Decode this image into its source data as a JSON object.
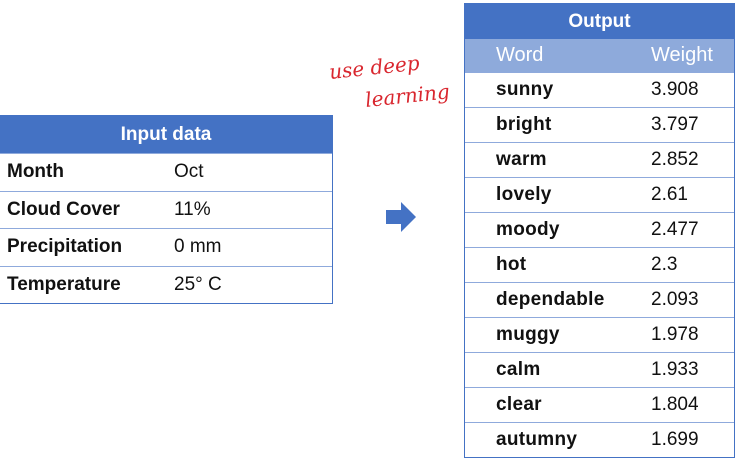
{
  "input": {
    "title": "Input data",
    "rows": [
      {
        "label": "Month",
        "value": "Oct"
      },
      {
        "label": "Cloud Cover",
        "value": "11%"
      },
      {
        "label": "Precipitation",
        "value": "0 mm"
      },
      {
        "label": "Temperature",
        "value": "25° C"
      }
    ]
  },
  "annotation": {
    "line1": "use deep",
    "line2": "learning",
    "color": "#d9262e"
  },
  "arrow": {
    "icon": "right-arrow-icon",
    "color": "#4472c4"
  },
  "output": {
    "title": "Output",
    "col_word": "Word",
    "col_weight": "Weight",
    "rows": [
      {
        "word": "sunny",
        "weight": "3.908"
      },
      {
        "word": "bright",
        "weight": "3.797"
      },
      {
        "word": "warm",
        "weight": "2.852"
      },
      {
        "word": "lovely",
        "weight": "2.61"
      },
      {
        "word": "moody",
        "weight": "2.477"
      },
      {
        "word": "hot",
        "weight": "2.3"
      },
      {
        "word": "dependable",
        "weight": "2.093"
      },
      {
        "word": "muggy",
        "weight": "1.978"
      },
      {
        "word": "calm",
        "weight": "1.933"
      },
      {
        "word": "clear",
        "weight": "1.804"
      },
      {
        "word": "autumny",
        "weight": "1.699"
      }
    ]
  },
  "colors": {
    "header": "#4472c4",
    "subheader": "#8eaadb",
    "border": "#8faadc"
  }
}
